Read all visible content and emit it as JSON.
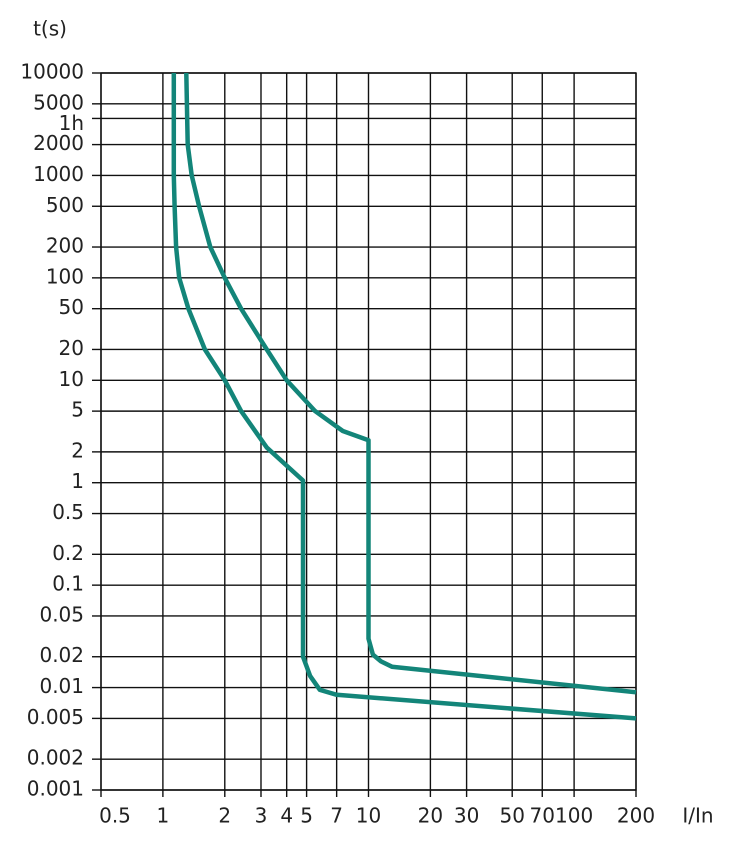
{
  "chart_data": {
    "type": "line",
    "xlabel": "I/In",
    "ylabel": "t(s)",
    "xlog": true,
    "ylog": true,
    "grid": true,
    "xlim": [
      0.5,
      200
    ],
    "ylim": [
      0.001,
      10000
    ],
    "xticks": [
      0.5,
      1,
      2,
      3,
      4,
      5,
      7,
      10,
      20,
      30,
      50,
      70,
      100,
      200
    ],
    "yticks": [
      10000,
      5000,
      {
        "value": 3600,
        "label": "1h"
      },
      2000,
      1000,
      500,
      200,
      100,
      50,
      20,
      10,
      5,
      2,
      1,
      0.5,
      0.2,
      0.1,
      0.05,
      0.02,
      0.01,
      0.005,
      0.002,
      0.001
    ],
    "series": [
      {
        "color": "#138579",
        "x": [
          1.13,
          1.13,
          1.14,
          1.16,
          1.2,
          1.33,
          1.6,
          2,
          2.4,
          3.2,
          4.8,
          4.8,
          5.2,
          5.8,
          7,
          200
        ],
        "values": [
          10000,
          1000,
          500,
          200,
          100,
          50,
          20,
          10,
          5,
          2.2,
          1.05,
          0.02,
          0.013,
          0.0095,
          0.0085,
          0.005
        ]
      },
      {
        "color": "#138579",
        "x": [
          1.3,
          1.32,
          1.38,
          1.5,
          1.7,
          2,
          2.4,
          3.2,
          4,
          5.5,
          7.5,
          10,
          10,
          10.5,
          11.5,
          13,
          200
        ],
        "values": [
          10000,
          2000,
          1000,
          500,
          200,
          100,
          50,
          20,
          10,
          5,
          3.2,
          2.6,
          0.03,
          0.021,
          0.018,
          0.016,
          0.009
        ]
      }
    ]
  }
}
